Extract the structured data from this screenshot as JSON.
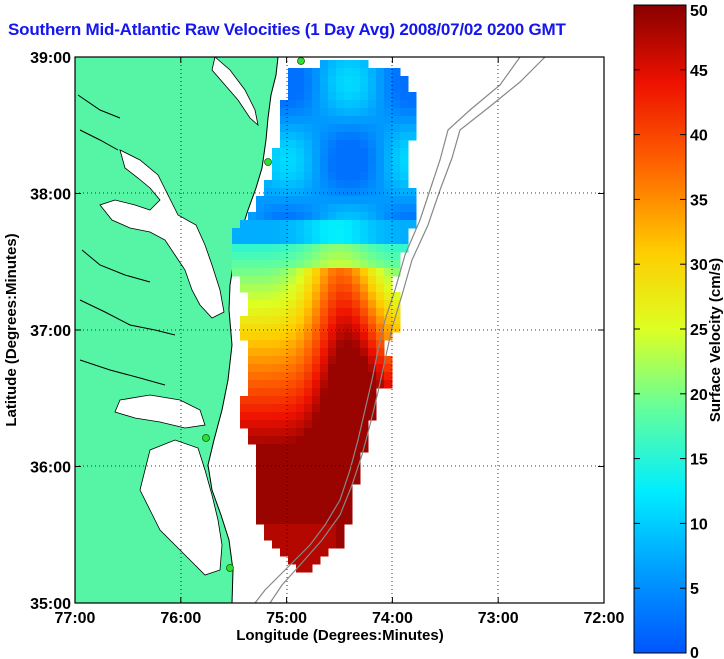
{
  "title": "Southern Mid-Atlantic Raw Velocities (1 Day Avg) 2008/07/02 0200 GMT",
  "map": {
    "xlabel": "Longitude (Degrees:Minutes)",
    "ylabel": "Latitude (Degrees:Minutes)",
    "xticks": [
      "77:00",
      "76:00",
      "75:00",
      "74:00",
      "73:00",
      "72:00"
    ],
    "yticks": [
      "39:00",
      "38:00",
      "37:00",
      "36:00",
      "35:00"
    ],
    "lon_range": [
      -77,
      -72
    ],
    "lat_range": [
      35,
      39
    ],
    "grid": true,
    "land_color": "#55f5a5",
    "coast_color": "#000000",
    "station_color": "#33dd33"
  },
  "colorbar": {
    "label": "Surface Velocity (cm/s)",
    "ticks": [
      "0",
      "5",
      "10",
      "15",
      "20",
      "25",
      "30",
      "35",
      "40",
      "45",
      "50"
    ],
    "range": [
      0,
      50
    ],
    "colormap": "jet"
  }
}
